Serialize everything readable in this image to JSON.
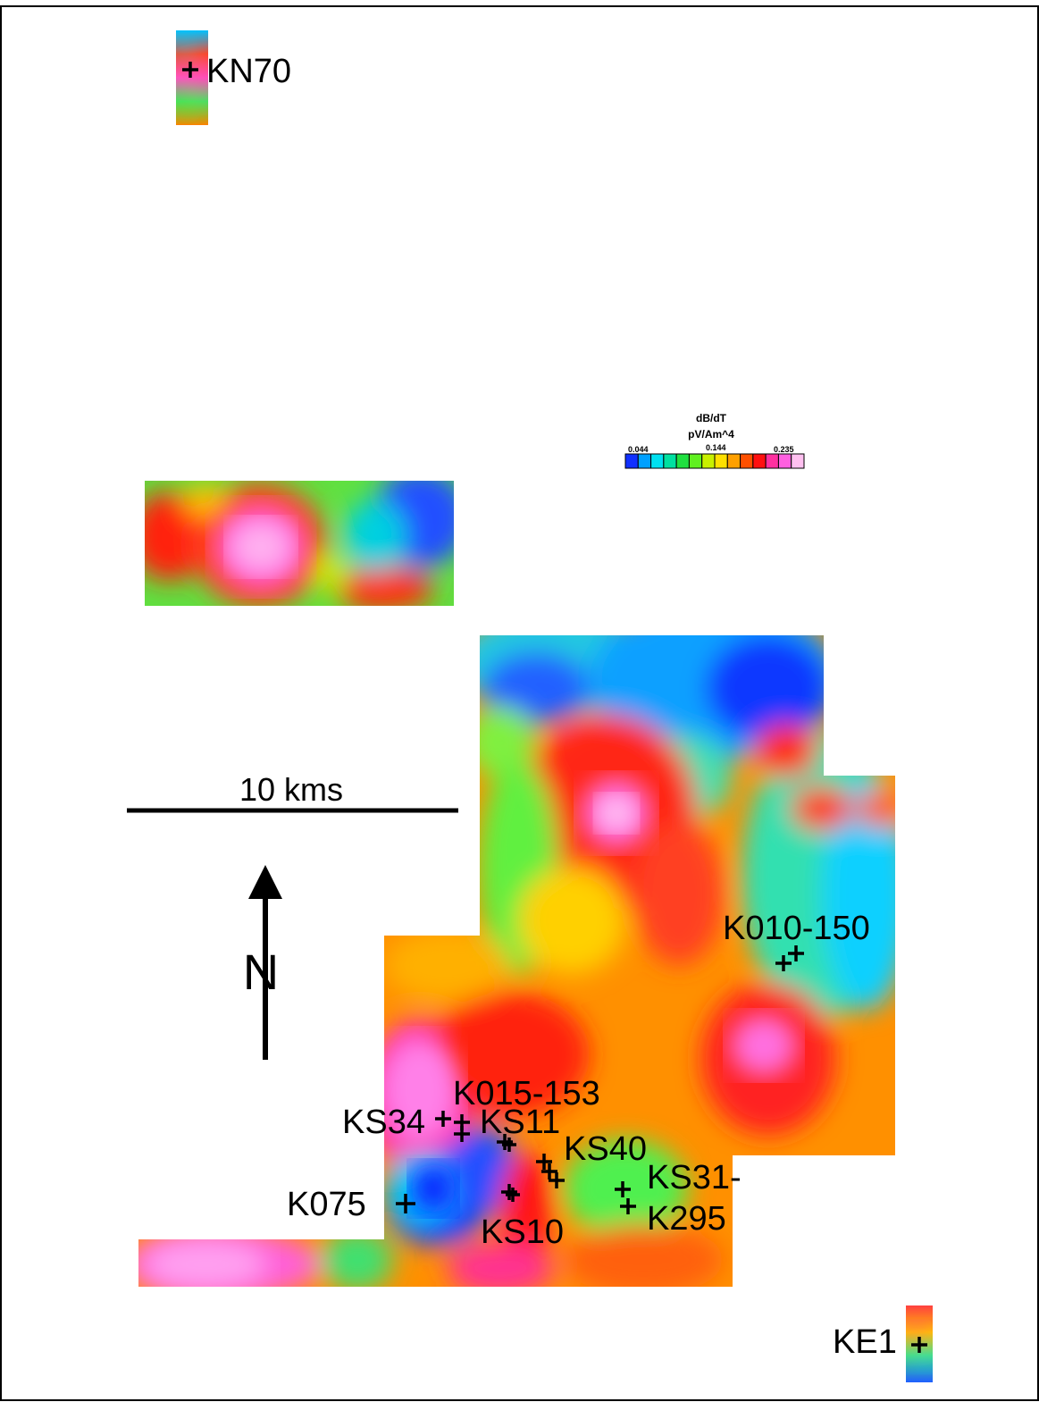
{
  "legend": {
    "title_line1": "dB/dT",
    "title_line2": "pV/Am^4",
    "tick_min": "0.044",
    "tick_mid": "0.144",
    "tick_max": "0.235",
    "colors": [
      "#1030ff",
      "#00a0ff",
      "#00e0f0",
      "#00e0a0",
      "#20e040",
      "#60f020",
      "#c8f000",
      "#ffe000",
      "#ffa000",
      "#ff5000",
      "#ff1010",
      "#ff30a0",
      "#ff60e0",
      "#ffc0f0"
    ]
  },
  "scale_bar": {
    "label": "10 kms"
  },
  "north_arrow": {
    "label": "N"
  },
  "wells": [
    {
      "id": "kn70",
      "label": "KN70"
    },
    {
      "id": "k010-150",
      "label": "K010-150"
    },
    {
      "id": "k015-153",
      "label": "K015-153"
    },
    {
      "id": "ks34",
      "label": "KS34"
    },
    {
      "id": "ks11",
      "label": "KS11"
    },
    {
      "id": "ks40",
      "label": "KS40"
    },
    {
      "id": "ks31",
      "label": "KS31-"
    },
    {
      "id": "k295",
      "label": "K295"
    },
    {
      "id": "k075",
      "label": "K075"
    },
    {
      "id": "ks10",
      "label": "KS10"
    },
    {
      "id": "ke1",
      "label": "KE1"
    }
  ]
}
